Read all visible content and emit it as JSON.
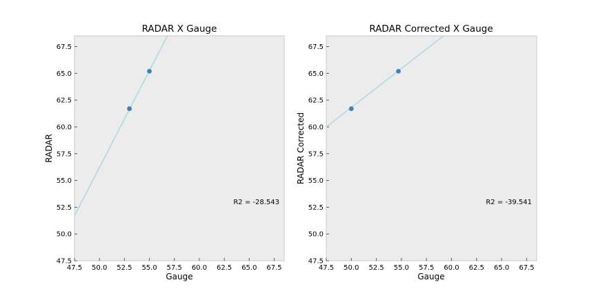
{
  "chart_data": [
    {
      "type": "scatter",
      "title": "RADAR X Gauge",
      "xlabel": "Gauge",
      "ylabel": "RADAR",
      "xlim": [
        47.5,
        68.5
      ],
      "ylim": [
        47.5,
        68.5
      ],
      "xticks": [
        "47.5",
        "50.0",
        "52.5",
        "55.0",
        "57.5",
        "60.0",
        "62.5",
        "65.0",
        "67.5"
      ],
      "yticks": [
        "47.5",
        "50.0",
        "52.5",
        "55.0",
        "57.5",
        "60.0",
        "62.5",
        "65.0",
        "67.5"
      ],
      "points": [
        {
          "x": 53.0,
          "y": 61.7
        },
        {
          "x": 55.0,
          "y": 65.2
        }
      ],
      "fit_line": [
        {
          "x": 47.5,
          "y": 51.7
        },
        {
          "x": 56.8,
          "y": 68.5
        }
      ],
      "annotation": "R2 = -28.543",
      "grid": false,
      "colors": {
        "background": "#ececec",
        "point": "#3a84b9",
        "line": "#add8e6"
      }
    },
    {
      "type": "scatter",
      "title": "RADAR Corrected X Gauge",
      "xlabel": "Gauge",
      "ylabel": "RADAR Corrected",
      "xlim": [
        47.5,
        68.5
      ],
      "ylim": [
        47.5,
        68.5
      ],
      "xticks": [
        "47.5",
        "50.0",
        "52.5",
        "55.0",
        "57.5",
        "60.0",
        "62.5",
        "65.0",
        "67.5"
      ],
      "yticks": [
        "47.5",
        "50.0",
        "52.5",
        "55.0",
        "57.5",
        "60.0",
        "62.5",
        "65.0",
        "67.5"
      ],
      "points": [
        {
          "x": 50.0,
          "y": 61.7
        },
        {
          "x": 54.7,
          "y": 65.2
        }
      ],
      "fit_line": [
        {
          "x": 47.5,
          "y": 60.0
        },
        {
          "x": 59.2,
          "y": 68.5
        }
      ],
      "annotation": "R2 = -39.541",
      "grid": false,
      "colors": {
        "background": "#ececec",
        "point": "#3a84b9",
        "line": "#add8e6"
      }
    }
  ]
}
